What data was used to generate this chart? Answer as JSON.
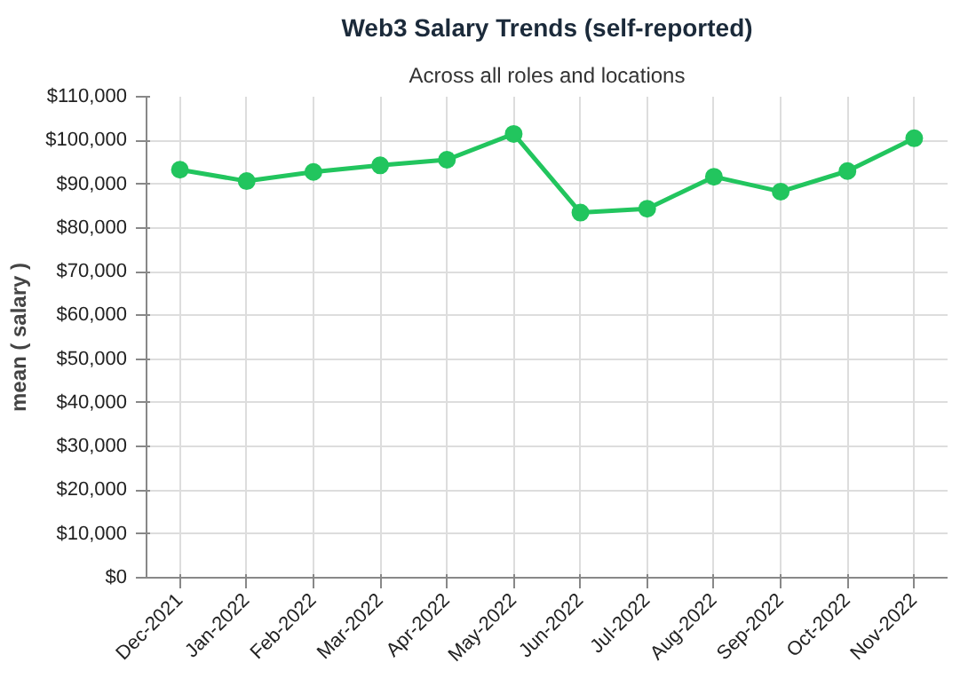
{
  "chart_data": {
    "type": "line",
    "title": "Web3 Salary Trends (self-reported)",
    "subtitle": "Across all roles and locations",
    "ylabel": "mean ( salary )",
    "categories": [
      "Dec-2021",
      "Jan-2022",
      "Feb-2022",
      "Mar-2022",
      "Apr-2022",
      "May-2022",
      "Jun-2022",
      "Jul-2022",
      "Aug-2022",
      "Sep-2022",
      "Oct-2022",
      "Nov-2022"
    ],
    "series": [
      {
        "color": "#22c55e",
        "values": [
          93300,
          90700,
          92800,
          94300,
          95600,
          101500,
          83500,
          84400,
          91700,
          88300,
          93000,
          100500
        ]
      }
    ],
    "ylim": [
      0,
      110000
    ],
    "yticks": [
      {
        "value": 0,
        "label": "$0"
      },
      {
        "value": 10000,
        "label": "$10,000"
      },
      {
        "value": 20000,
        "label": "$20,000"
      },
      {
        "value": 30000,
        "label": "$30,000"
      },
      {
        "value": 40000,
        "label": "$40,000"
      },
      {
        "value": 50000,
        "label": "$50,000"
      },
      {
        "value": 60000,
        "label": "$60,000"
      },
      {
        "value": 70000,
        "label": "$70,000"
      },
      {
        "value": 80000,
        "label": "$80,000"
      },
      {
        "value": 90000,
        "label": "$90,000"
      },
      {
        "value": 100000,
        "label": "$100,000"
      },
      {
        "value": 110000,
        "label": "$110,000"
      }
    ],
    "grid": true,
    "marker": "circle",
    "line_style": "solid"
  }
}
